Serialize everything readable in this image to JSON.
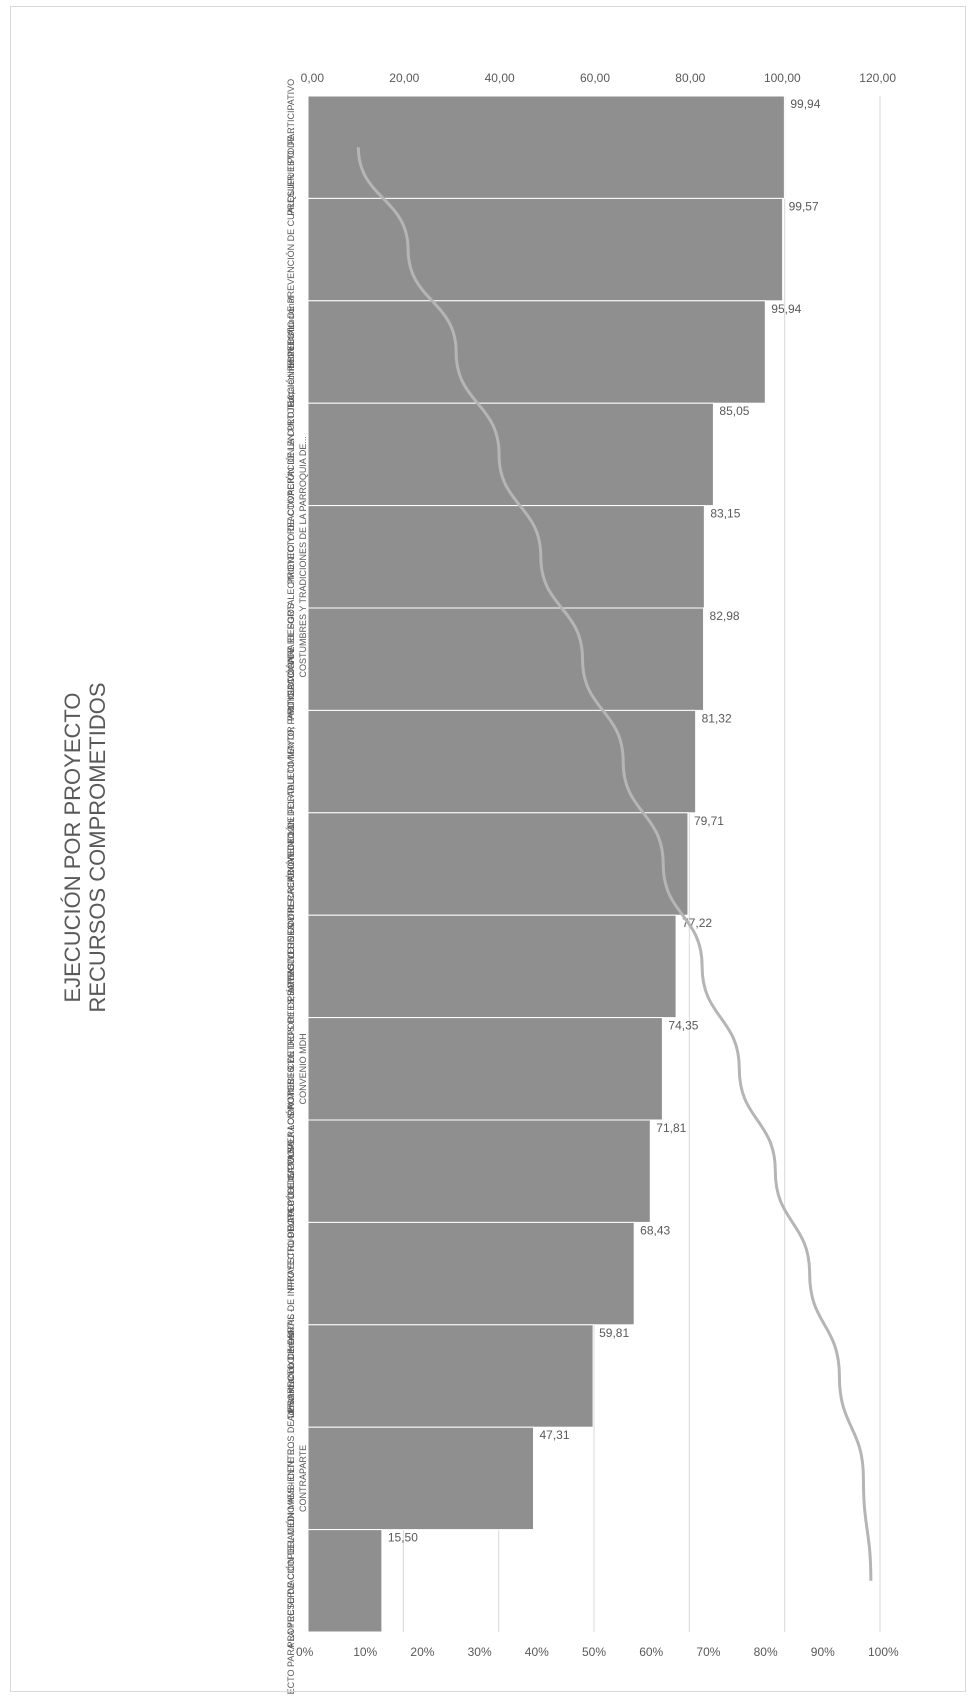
{
  "colors": {
    "bar": "#8f8f8f",
    "bar_edge": "#ffffff",
    "line": "#b5b5b5",
    "grid": "#d9d9d9",
    "text": "#595959"
  },
  "chart_data": {
    "type": "bar",
    "orientation": "rotated-90-clockwise",
    "title": "EJECUCIÓN POR PROYECTO",
    "subtitle": "RECURSOS COMPROMETIDOS",
    "categories": [
      "PRESUPUESTO PARTICIPATIVO",
      "PROYECTO DE PREVENCIÓN DE CUALQUIER TIPO DE...",
      "Fortalecimiento Institucional",
      "PROYECTO DE COOPERACIÓN EN PROTECCIÓN ESPECIAL",
      "PROYECTO PARA EL FORTALECIMIENTO Y REACTIVACIÓN DE LA CULTURA, COSTUMBRES Y TRADICIONES DE LA PARROQUIA DE...",
      "MITIGACIÓN DE RIESGOS",
      "PROYECTO DE FORTALECIMIENTO, PARTICIPACIÓN Y...",
      "PROYECTO DE COOPERACIÓN ATENCIÓN DEL ADULTO MAYOR",
      "PROYECTO DE DEPORTES, ÁREAS VERDES Y RECREACIÓN DE LA...",
      "PROYECTO DE COOPERACIÓN MIES - CENTROS DE DESARROLLO INFANTIL - CONVENIO MDH",
      "PROYECTO DE APOYO E IMPULSO A LOS ACTORES Y...",
      "PROYECTO DE OBRAS DE INFRAESTRUCTURA PÚBLICA PARA...",
      "Administración Central",
      "PROYECTO DE COOPERACIÓN MIES - CENTROS DE DESARROLLO INFANTIL - CONTRAPARTE",
      "PROYECTO PARA LA PRESERVACIÓN DEL MEDIO AMBIENTE E..."
    ],
    "series": [
      {
        "type": "bar",
        "values": [
          99.94,
          99.57,
          95.94,
          85.05,
          83.15,
          82.98,
          81.32,
          79.71,
          77.22,
          74.35,
          71.81,
          68.43,
          59.81,
          47.31,
          15.5
        ],
        "data_labels": [
          "99,94",
          "99,57",
          "95,94",
          "85,05",
          "83,15",
          "82,98",
          "81,32",
          "79,71",
          "77,22",
          "74,35",
          "71,81",
          "68,43",
          "59,81",
          "47,31",
          "15,50"
        ]
      },
      {
        "type": "line",
        "axis": "secondary",
        "values": [
          8.8,
          17.5,
          25.9,
          33.4,
          40.7,
          48.0,
          55.1,
          62.1,
          68.9,
          75.4,
          81.7,
          87.7,
          92.9,
          97.1,
          98.4
        ]
      }
    ],
    "y_axis": {
      "range": [
        0,
        120
      ],
      "ticks": [
        0,
        20,
        40,
        60,
        80,
        100,
        120
      ],
      "tick_labels": [
        "0,00",
        "20,00",
        "40,00",
        "60,00",
        "80,00",
        "100,00",
        "120,00"
      ]
    },
    "y2_axis": {
      "range": [
        0,
        100
      ],
      "ticks": [
        0,
        10,
        20,
        30,
        40,
        50,
        60,
        70,
        80,
        90,
        100
      ],
      "tick_labels": [
        "0%",
        "10%",
        "20%",
        "30%",
        "40%",
        "50%",
        "60%",
        "70%",
        "80%",
        "90%",
        "100%"
      ]
    },
    "grid": true,
    "legend": "none"
  }
}
